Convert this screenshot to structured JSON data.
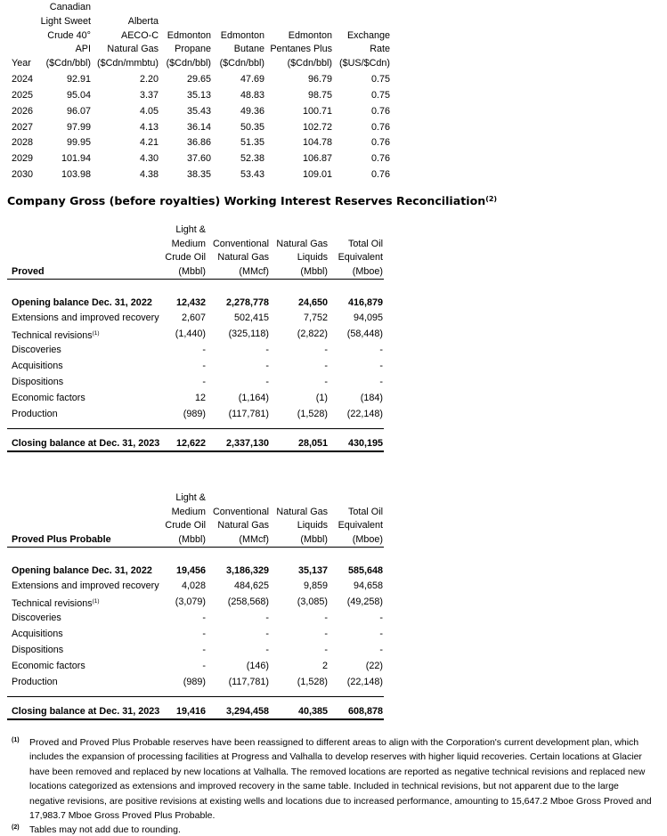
{
  "price_table": {
    "headers": [
      [
        "Year"
      ],
      [
        "Canadian",
        "Light Sweet",
        "Crude 40°",
        "API",
        "($Cdn/bbl)"
      ],
      [
        "Alberta",
        "AECO-C",
        "Natural Gas",
        "($Cdn/mmbtu)"
      ],
      [
        "Edmonton",
        "Propane",
        "($Cdn/bbl)"
      ],
      [
        "Edmonton",
        "Butane",
        "($Cdn/bbl)"
      ],
      [
        "Edmonton",
        "Pentanes Plus",
        "($Cdn/bbl)"
      ],
      [
        "Exchange",
        "Rate",
        "($US/$Cdn)"
      ]
    ],
    "rows": [
      [
        "2024",
        "92.91",
        "2.20",
        "29.65",
        "47.69",
        "96.79",
        "0.75"
      ],
      [
        "2025",
        "95.04",
        "3.37",
        "35.13",
        "48.83",
        "98.75",
        "0.75"
      ],
      [
        "2026",
        "96.07",
        "4.05",
        "35.43",
        "49.36",
        "100.71",
        "0.76"
      ],
      [
        "2027",
        "97.99",
        "4.13",
        "36.14",
        "50.35",
        "102.72",
        "0.76"
      ],
      [
        "2028",
        "99.95",
        "4.21",
        "36.86",
        "51.35",
        "104.78",
        "0.76"
      ],
      [
        "2029",
        "101.94",
        "4.30",
        "37.60",
        "52.38",
        "106.87",
        "0.76"
      ],
      [
        "2030",
        "103.98",
        "4.38",
        "38.35",
        "53.43",
        "109.01",
        "0.76"
      ]
    ]
  },
  "reconciliation": {
    "title": "Company Gross (before royalties) Working Interest Reserves Reconciliation",
    "title_note": "(2)",
    "tables": [
      {
        "section": "Proved",
        "headers": [
          [
            "Light &",
            "Medium",
            "Crude Oil",
            "(Mbbl)"
          ],
          [
            "Conventional",
            "Natural Gas",
            "(MMcf)"
          ],
          [
            "Natural Gas",
            "Liquids",
            "(Mbbl)"
          ],
          [
            "Total Oil",
            "Equivalent",
            "(Mboe)"
          ]
        ],
        "rows": [
          {
            "label": "Opening balance Dec. 31, 2022",
            "values": [
              "12,432",
              "2,278,778",
              "24,650",
              "416,879"
            ],
            "bold": true
          },
          {
            "label": "Extensions and improved recovery",
            "values": [
              "2,607",
              "502,415",
              "7,752",
              "94,095"
            ]
          },
          {
            "label": "Technical revisions",
            "note": "(1)",
            "values": [
              "(1,440)",
              "(325,118)",
              "(2,822)",
              "(58,448)"
            ]
          },
          {
            "label": "Discoveries",
            "values": [
              "-",
              "-",
              "-",
              "-"
            ]
          },
          {
            "label": "Acquisitions",
            "values": [
              "-",
              "-",
              "-",
              "-"
            ]
          },
          {
            "label": "Dispositions",
            "values": [
              "-",
              "-",
              "-",
              "-"
            ]
          },
          {
            "label": "Economic factors",
            "values": [
              "12",
              "(1,164)",
              "(1)",
              "(184)"
            ]
          },
          {
            "label": "Production",
            "values": [
              "(989)",
              "(117,781)",
              "(1,528)",
              "(22,148)"
            ]
          }
        ],
        "closing": {
          "label": "Closing balance at Dec. 31, 2023",
          "values": [
            "12,622",
            "2,337,130",
            "28,051",
            "430,195"
          ],
          "bold": true
        }
      },
      {
        "section": "Proved Plus Probable",
        "headers": [
          [
            "Light &",
            "Medium",
            "Crude Oil",
            "(Mbbl)"
          ],
          [
            "Conventional",
            "Natural Gas",
            "(MMcf)"
          ],
          [
            "Natural Gas",
            "Liquids",
            "(Mbbl)"
          ],
          [
            "Total Oil",
            "Equivalent",
            "(Mboe)"
          ]
        ],
        "rows": [
          {
            "label": "Opening balance Dec. 31, 2022",
            "values": [
              "19,456",
              "3,186,329",
              "35,137",
              "585,648"
            ],
            "bold": true
          },
          {
            "label": "Extensions and improved recovery",
            "values": [
              "4,028",
              "484,625",
              "9,859",
              "94,658"
            ]
          },
          {
            "label": "Technical revisions",
            "note": "(1)",
            "values": [
              "(3,079)",
              "(258,568)",
              "(3,085)",
              "(49,258)"
            ]
          },
          {
            "label": "Discoveries",
            "values": [
              "-",
              "-",
              "-",
              "-"
            ]
          },
          {
            "label": "Acquisitions",
            "values": [
              "-",
              "-",
              "-",
              "-"
            ]
          },
          {
            "label": "Dispositions",
            "values": [
              "-",
              "-",
              "-",
              "-"
            ]
          },
          {
            "label": "Economic factors",
            "values": [
              "-",
              "(146)",
              "2",
              "(22)"
            ]
          },
          {
            "label": "Production",
            "values": [
              "(989)",
              "(117,781)",
              "(1,528)",
              "(22,148)"
            ]
          }
        ],
        "closing": {
          "label": "Closing balance at Dec. 31, 2023",
          "values": [
            "19,416",
            "3,294,458",
            "40,385",
            "608,878"
          ],
          "bold": true
        }
      }
    ]
  },
  "footnotes": [
    {
      "marker": "(1)",
      "text": "Proved and Proved Plus Probable reserves have been reassigned to different areas to align with the Corporation's current development plan, which includes the expansion of processing facilities at Progress and Valhalla to develop reserves with higher liquid recoveries. Certain locations at Glacier have been removed and replaced by new locations at Valhalla. The removed locations are reported as negative technical revisions and replaced new locations categorized as extensions and improved recovery in the same table. Included in technical revisions, but not apparent due to the large negative revisions, are positive revisions at existing wells and locations due to increased performance, amounting to 15,647.2 Mboe Gross Proved and 17,983.7 Mboe Gross Proved Plus Probable."
    },
    {
      "marker": "(2)",
      "text": "Tables may not add due to rounding."
    }
  ]
}
